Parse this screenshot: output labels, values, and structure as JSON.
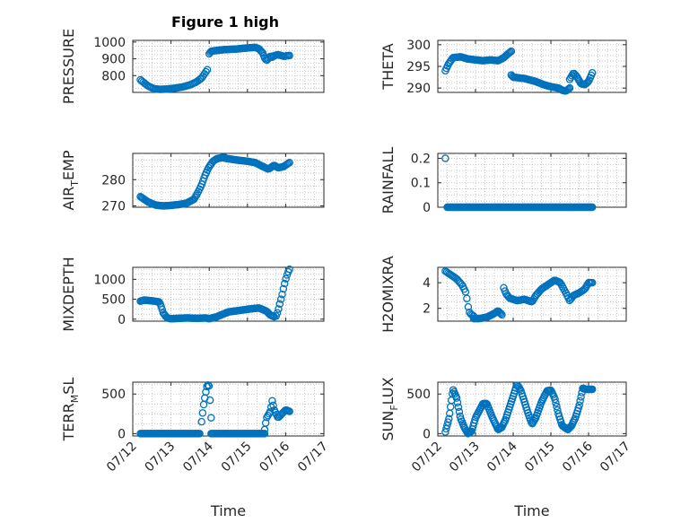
{
  "figure": {
    "title": "Figure 1 high",
    "marker_color": "#0072bd"
  },
  "chart_data": [
    {
      "type": "scatter",
      "title": "Figure 1 high",
      "ylabel": "PRESSURE",
      "yticks": [
        800,
        900,
        1000
      ],
      "ylim": [
        700,
        1010
      ],
      "xlim": [
        0,
        5
      ],
      "xticks": [
        "07/12",
        "07/13",
        "07/14",
        "07/15",
        "07/16",
        "07/17"
      ],
      "x_tick_labels_visible": false,
      "grid": true,
      "segments": [
        {
          "x_start": 0.2,
          "x_end": 1.95,
          "n": 48,
          "points": [
            [
              0.2,
              775
            ],
            [
              0.28,
              760
            ],
            [
              0.4,
              738
            ],
            [
              0.55,
              722
            ],
            [
              0.7,
              718
            ],
            [
              0.9,
              720
            ],
            [
              1.1,
              725
            ],
            [
              1.3,
              732
            ],
            [
              1.5,
              745
            ],
            [
              1.65,
              760
            ],
            [
              1.8,
              785
            ],
            [
              1.95,
              835
            ]
          ]
        },
        {
          "x_start": 2.0,
          "x_end": 3.65,
          "n": 60,
          "points": [
            [
              2.0,
              930
            ],
            [
              2.05,
              945
            ],
            [
              2.2,
              950
            ],
            [
              2.4,
              955
            ],
            [
              2.7,
              958
            ],
            [
              3.0,
              965
            ],
            [
              3.2,
              968
            ],
            [
              3.3,
              960
            ],
            [
              3.4,
              935
            ],
            [
              3.45,
              905
            ],
            [
              3.5,
              890
            ],
            [
              3.6,
              915
            ],
            [
              3.65,
              910
            ]
          ]
        },
        {
          "x_start": 3.65,
          "x_end": 4.1,
          "n": 14,
          "points": [
            [
              3.65,
              915
            ],
            [
              3.8,
              925
            ],
            [
              3.95,
              915
            ],
            [
              4.1,
              920
            ]
          ]
        }
      ]
    },
    {
      "type": "scatter",
      "ylabel": "THETA",
      "yticks": [
        290,
        295,
        300
      ],
      "ylim": [
        289,
        301
      ],
      "xlim": [
        0,
        5
      ],
      "xticks": [
        "07/12",
        "07/13",
        "07/14",
        "07/15",
        "07/16",
        "07/17"
      ],
      "x_tick_labels_visible": false,
      "grid": true,
      "segments": [
        {
          "x_start": 0.2,
          "x_end": 1.95,
          "n": 60,
          "points": [
            [
              0.2,
              294
            ],
            [
              0.28,
              295.5
            ],
            [
              0.4,
              297
            ],
            [
              0.6,
              297.2
            ],
            [
              0.8,
              296.7
            ],
            [
              1.0,
              296.5
            ],
            [
              1.2,
              296.3
            ],
            [
              1.4,
              296.5
            ],
            [
              1.6,
              296.3
            ],
            [
              1.75,
              297
            ],
            [
              1.85,
              297.8
            ],
            [
              1.95,
              298.5
            ]
          ]
        },
        {
          "x_start": 1.95,
          "x_end": 3.5,
          "n": 55,
          "points": [
            [
              1.95,
              293
            ],
            [
              2.0,
              292.5
            ],
            [
              2.3,
              292.2
            ],
            [
              2.6,
              291.5
            ],
            [
              2.8,
              290.8
            ],
            [
              3.0,
              290.3
            ],
            [
              3.2,
              290
            ],
            [
              3.3,
              289.5
            ],
            [
              3.4,
              289.3
            ],
            [
              3.5,
              290
            ]
          ]
        },
        {
          "x_start": 3.5,
          "x_end": 4.1,
          "n": 22,
          "points": [
            [
              3.5,
              292
            ],
            [
              3.6,
              293.5
            ],
            [
              3.7,
              292.5
            ],
            [
              3.8,
              291
            ],
            [
              3.9,
              290.8
            ],
            [
              4.0,
              291.5
            ],
            [
              4.1,
              293.5
            ]
          ]
        }
      ]
    },
    {
      "type": "scatter",
      "ylabel": "AIR_TEMP",
      "ylabel_main": "AIR",
      "ylabel_sub": "T",
      "ylabel_rest": "EMP",
      "yticks": [
        270,
        280
      ],
      "ylim": [
        269.5,
        290
      ],
      "xlim": [
        0,
        5
      ],
      "xticks": [
        "07/12",
        "07/13",
        "07/14",
        "07/15",
        "07/16",
        "07/17"
      ],
      "x_tick_labels_visible": false,
      "grid": true,
      "segments": [
        {
          "x_start": 0.2,
          "x_end": 2.4,
          "n": 75,
          "points": [
            [
              0.2,
              273.5
            ],
            [
              0.4,
              271.5
            ],
            [
              0.6,
              270.3
            ],
            [
              0.8,
              270
            ],
            [
              1.0,
              270.2
            ],
            [
              1.2,
              270.5
            ],
            [
              1.4,
              271
            ],
            [
              1.6,
              272.5
            ],
            [
              1.7,
              275
            ],
            [
              1.8,
              278
            ],
            [
              1.9,
              282
            ],
            [
              2.0,
              285
            ],
            [
              2.1,
              287
            ],
            [
              2.2,
              288
            ],
            [
              2.4,
              288.5
            ]
          ]
        },
        {
          "x_start": 2.4,
          "x_end": 4.1,
          "n": 55,
          "points": [
            [
              2.4,
              288.2
            ],
            [
              2.7,
              287.5
            ],
            [
              3.0,
              287
            ],
            [
              3.2,
              286.5
            ],
            [
              3.4,
              285
            ],
            [
              3.55,
              284
            ],
            [
              3.7,
              285.5
            ],
            [
              3.8,
              284.5
            ],
            [
              3.95,
              285
            ],
            [
              4.1,
              286.5
            ]
          ]
        }
      ]
    },
    {
      "type": "scatter",
      "ylabel": "RAINFALL",
      "yticks": [
        0,
        0.1,
        0.2
      ],
      "ytick_labels": [
        "0",
        "0.1",
        "0.2"
      ],
      "ylim": [
        0,
        0.22
      ],
      "xlim": [
        0,
        5
      ],
      "xticks": [
        "07/12",
        "07/13",
        "07/14",
        "07/15",
        "07/16",
        "07/17"
      ],
      "x_tick_labels_visible": false,
      "grid": true,
      "segments": [
        {
          "x_start": 0.2,
          "x_end": 0.2,
          "n": 1,
          "points": [
            [
              0.2,
              0.2
            ]
          ]
        },
        {
          "x_start": 0.25,
          "x_end": 4.1,
          "n": 170,
          "points": [
            [
              0.25,
              0
            ],
            [
              4.1,
              0
            ]
          ]
        }
      ]
    },
    {
      "type": "scatter",
      "ylabel": "MIXDEPTH",
      "yticks": [
        0,
        500,
        1000
      ],
      "ylim": [
        -50,
        1300
      ],
      "xlim": [
        0,
        5
      ],
      "xticks": [
        "07/12",
        "07/13",
        "07/14",
        "07/15",
        "07/16",
        "07/17"
      ],
      "x_tick_labels_visible": false,
      "grid": true,
      "segments": [
        {
          "x_start": 0.2,
          "x_end": 3.7,
          "n": 130,
          "points": [
            [
              0.2,
              450
            ],
            [
              0.3,
              480
            ],
            [
              0.5,
              460
            ],
            [
              0.7,
              430
            ],
            [
              0.75,
              300
            ],
            [
              0.8,
              150
            ],
            [
              0.9,
              30
            ],
            [
              1.0,
              10
            ],
            [
              1.4,
              30
            ],
            [
              1.7,
              20
            ],
            [
              1.9,
              30
            ],
            [
              2.0,
              10
            ],
            [
              2.2,
              60
            ],
            [
              2.5,
              180
            ],
            [
              2.8,
              220
            ],
            [
              3.1,
              260
            ],
            [
              3.3,
              280
            ],
            [
              3.5,
              200
            ],
            [
              3.6,
              100
            ],
            [
              3.7,
              60
            ]
          ]
        },
        {
          "x_start": 3.75,
          "x_end": 4.1,
          "n": 12,
          "points": [
            [
              3.75,
              80
            ],
            [
              3.8,
              200
            ],
            [
              3.85,
              400
            ],
            [
              3.9,
              580
            ],
            [
              3.95,
              800
            ],
            [
              4.0,
              1000
            ],
            [
              4.05,
              1150
            ],
            [
              4.1,
              1250
            ]
          ]
        }
      ]
    },
    {
      "type": "scatter",
      "ylabel": "H2OMIXRA",
      "yticks": [
        2,
        4
      ],
      "ylim": [
        1,
        5.2
      ],
      "xlim": [
        0,
        5
      ],
      "xticks": [
        "07/12",
        "07/13",
        "07/14",
        "07/15",
        "07/16",
        "07/17"
      ],
      "x_tick_labels_visible": false,
      "grid": true,
      "segments": [
        {
          "x_start": 0.2,
          "x_end": 0.95,
          "n": 22,
          "points": [
            [
              0.2,
              4.9
            ],
            [
              0.35,
              4.6
            ],
            [
              0.5,
              4.3
            ],
            [
              0.65,
              3.8
            ],
            [
              0.75,
              3.2
            ],
            [
              0.8,
              2.2
            ],
            [
              0.85,
              1.6
            ],
            [
              0.95,
              1.4
            ]
          ]
        },
        {
          "x_start": 0.95,
          "x_end": 1.7,
          "n": 28,
          "points": [
            [
              0.95,
              1.2
            ],
            [
              1.1,
              1.2
            ],
            [
              1.3,
              1.3
            ],
            [
              1.5,
              1.6
            ],
            [
              1.6,
              1.8
            ],
            [
              1.7,
              1.5
            ]
          ]
        },
        {
          "x_start": 1.75,
          "x_end": 4.1,
          "n": 75,
          "points": [
            [
              1.75,
              3.6
            ],
            [
              1.8,
              3.2
            ],
            [
              1.9,
              2.8
            ],
            [
              2.1,
              2.6
            ],
            [
              2.3,
              2.7
            ],
            [
              2.5,
              2.5
            ],
            [
              2.6,
              3.0
            ],
            [
              2.75,
              3.5
            ],
            [
              2.9,
              3.8
            ],
            [
              3.1,
              4.2
            ],
            [
              3.25,
              4.0
            ],
            [
              3.4,
              3.2
            ],
            [
              3.5,
              2.6
            ],
            [
              3.6,
              3.0
            ],
            [
              3.75,
              3.2
            ],
            [
              3.9,
              3.5
            ],
            [
              4.0,
              4.0
            ],
            [
              4.1,
              4.0
            ]
          ]
        }
      ]
    },
    {
      "type": "scatter",
      "ylabel": "TERR_MSL",
      "ylabel_main": "TERR",
      "ylabel_sub": "M",
      "ylabel_rest": "SL",
      "yticks": [
        0,
        500
      ],
      "ylim": [
        -30,
        650
      ],
      "xlim": [
        0,
        5
      ],
      "xticks": [
        "07/12",
        "07/13",
        "07/14",
        "07/15",
        "07/16",
        "07/17"
      ],
      "x_tick_labels_visible": true,
      "xlabel": "Time",
      "grid": true,
      "segments": [
        {
          "x_start": 0.2,
          "x_end": 1.75,
          "n": 60,
          "points": [
            [
              0.2,
              0
            ],
            [
              1.75,
              0
            ]
          ]
        },
        {
          "x_start": 1.8,
          "x_end": 2.05,
          "n": 10,
          "points": [
            [
              1.8,
              150
            ],
            [
              1.85,
              350
            ],
            [
              1.9,
              500
            ],
            [
              1.95,
              620
            ],
            [
              2.0,
              600
            ],
            [
              2.05,
              200
            ]
          ]
        },
        {
          "x_start": 2.05,
          "x_end": 3.45,
          "n": 55,
          "points": [
            [
              2.05,
              0
            ],
            [
              3.45,
              0
            ]
          ]
        },
        {
          "x_start": 3.45,
          "x_end": 4.1,
          "n": 24,
          "points": [
            [
              3.45,
              50
            ],
            [
              3.5,
              200
            ],
            [
              3.6,
              280
            ],
            [
              3.65,
              420
            ],
            [
              3.7,
              300
            ],
            [
              3.8,
              200
            ],
            [
              3.9,
              250
            ],
            [
              4.0,
              300
            ],
            [
              4.1,
              280
            ]
          ]
        }
      ]
    },
    {
      "type": "scatter",
      "ylabel": "SUN_FLUX",
      "ylabel_main": "SUN",
      "ylabel_sub": "F",
      "ylabel_rest": "LUX",
      "yticks": [
        0,
        500
      ],
      "ylim": [
        -30,
        650
      ],
      "xlim": [
        0,
        5
      ],
      "xticks": [
        "07/12",
        "07/13",
        "07/14",
        "07/15",
        "07/16",
        "07/17"
      ],
      "x_tick_labels_visible": true,
      "xlabel": "Time",
      "grid": true,
      "segments": [
        {
          "x_start": 0.2,
          "x_end": 4.1,
          "n": 170,
          "points": [
            [
              0.2,
              20
            ],
            [
              0.3,
              200
            ],
            [
              0.4,
              560
            ],
            [
              0.5,
              450
            ],
            [
              0.6,
              200
            ],
            [
              0.7,
              80
            ],
            [
              0.8,
              0
            ],
            [
              0.9,
              30
            ],
            [
              1.0,
              200
            ],
            [
              1.2,
              380
            ],
            [
              1.3,
              380
            ],
            [
              1.45,
              200
            ],
            [
              1.6,
              50
            ],
            [
              1.7,
              80
            ],
            [
              1.8,
              180
            ],
            [
              1.95,
              400
            ],
            [
              2.1,
              620
            ],
            [
              2.2,
              550
            ],
            [
              2.3,
              400
            ],
            [
              2.4,
              250
            ],
            [
              2.5,
              120
            ],
            [
              2.6,
              200
            ],
            [
              2.75,
              400
            ],
            [
              2.9,
              540
            ],
            [
              3.0,
              550
            ],
            [
              3.1,
              450
            ],
            [
              3.2,
              250
            ],
            [
              3.3,
              100
            ],
            [
              3.45,
              50
            ],
            [
              3.55,
              100
            ],
            [
              3.65,
              200
            ],
            [
              3.75,
              350
            ],
            [
              3.85,
              580
            ],
            [
              3.9,
              560
            ]
          ]
        }
      ]
    }
  ]
}
